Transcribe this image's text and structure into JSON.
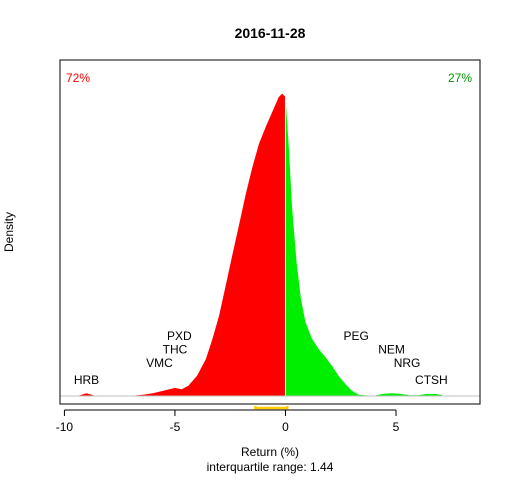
{
  "chart_data": {
    "type": "area",
    "title": "2016-11-28",
    "ylabel": "Density",
    "xlabel": "Return (%)",
    "subtitle": "interquartile range: 1.44",
    "xlim": [
      -10.2,
      8.8
    ],
    "ylim": [
      -0.012,
      0.5
    ],
    "xticks": [
      -10,
      -5,
      0,
      5
    ],
    "xtick_labels": [
      "-10",
      "-5",
      "0",
      "5"
    ],
    "left_pct": "72%",
    "right_pct": "27%",
    "colors": {
      "negative": "#ff0000",
      "positive": "#00ee00",
      "iqr": "#ffcc00",
      "left_pct": "#ff0000",
      "right_pct": "#009900"
    },
    "iqr": {
      "q1": -1.36,
      "q3": 0.08
    },
    "series": [
      {
        "x": [
          -9.4,
          -9.0,
          -8.6,
          -7.0,
          -6.4,
          -6.0,
          -5.5,
          -5.0,
          -4.7,
          -4.4,
          -4.0,
          -3.6,
          -3.3,
          -3.0,
          -2.7,
          -2.4,
          -2.1,
          -1.8,
          -1.5,
          -1.2,
          -0.9,
          -0.7,
          -0.5,
          -0.3,
          -0.15,
          0.0,
          0.15,
          0.3,
          0.5,
          0.7,
          0.9,
          1.2,
          1.5,
          1.8,
          2.1,
          2.4,
          2.7,
          3.0,
          3.3,
          3.6,
          4.0,
          4.4,
          4.8,
          5.2,
          5.6,
          6.0,
          6.4,
          6.8,
          7.2,
          7.6
        ],
        "y": [
          0.0,
          0.004,
          0.0,
          0.0,
          0.002,
          0.004,
          0.008,
          0.012,
          0.01,
          0.015,
          0.03,
          0.055,
          0.085,
          0.12,
          0.165,
          0.21,
          0.255,
          0.3,
          0.34,
          0.375,
          0.4,
          0.415,
          0.43,
          0.445,
          0.45,
          0.445,
          0.37,
          0.28,
          0.2,
          0.145,
          0.11,
          0.085,
          0.07,
          0.058,
          0.045,
          0.03,
          0.018,
          0.008,
          0.002,
          0.001,
          0.0,
          0.003,
          0.004,
          0.003,
          0.001,
          0.001,
          0.003,
          0.003,
          0.0,
          0.0
        ]
      }
    ],
    "labels": [
      {
        "text": "HRB",
        "x": -9.0,
        "y": 0.018
      },
      {
        "text": "VMC",
        "x": -5.7,
        "y": 0.043
      },
      {
        "text": "THC",
        "x": -5.0,
        "y": 0.063
      },
      {
        "text": "PXD",
        "x": -4.8,
        "y": 0.083
      },
      {
        "text": "PEG",
        "x": 3.2,
        "y": 0.083
      },
      {
        "text": "NEM",
        "x": 4.8,
        "y": 0.063
      },
      {
        "text": "NRG",
        "x": 5.5,
        "y": 0.043
      },
      {
        "text": "CTSH",
        "x": 6.6,
        "y": 0.018
      }
    ]
  }
}
